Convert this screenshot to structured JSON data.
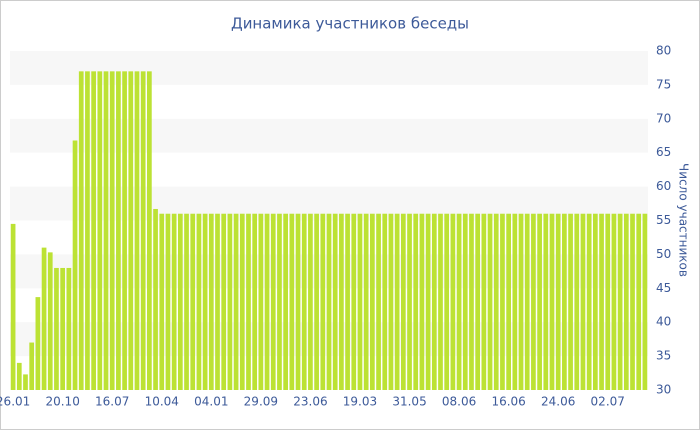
{
  "chart_data": {
    "type": "bar",
    "title": "Динамика участников беседы",
    "y_label": "Число участников",
    "categories": [
      "26.01",
      null,
      null,
      null,
      null,
      null,
      null,
      null,
      "20.10",
      null,
      null,
      null,
      null,
      null,
      null,
      null,
      "16.07",
      null,
      null,
      null,
      null,
      null,
      null,
      null,
      "10.04",
      null,
      null,
      null,
      null,
      null,
      null,
      null,
      "04.01",
      null,
      null,
      null,
      null,
      null,
      null,
      null,
      "29.09",
      null,
      null,
      null,
      null,
      null,
      null,
      null,
      "23.06",
      null,
      null,
      null,
      null,
      null,
      null,
      null,
      "19.03",
      null,
      null,
      null,
      null,
      null,
      null,
      null,
      "31.05",
      null,
      null,
      null,
      null,
      null,
      null,
      null,
      "08.06",
      null,
      null,
      null,
      null,
      null,
      null,
      null,
      "16.06",
      null,
      null,
      null,
      null,
      null,
      null,
      null,
      "24.06",
      null,
      null,
      null,
      null,
      null,
      null,
      null,
      "02.07",
      null,
      null,
      null,
      null,
      null,
      null
    ],
    "values": [
      54.5,
      34,
      32.3,
      37,
      43.7,
      51,
      50.3,
      48,
      48,
      48,
      66.8,
      77,
      77,
      77,
      77,
      77,
      77,
      77,
      77,
      77,
      77,
      77,
      77,
      56.7,
      56,
      56,
      56,
      56,
      56,
      56,
      56,
      56,
      56,
      56,
      56,
      56,
      56,
      56,
      56,
      56,
      56,
      56,
      56,
      56,
      56,
      56,
      56,
      56,
      56,
      56,
      56,
      56,
      56,
      56,
      56,
      56,
      56,
      56,
      56,
      56,
      56,
      56,
      56,
      56,
      56,
      56,
      56,
      56,
      56,
      56,
      56,
      56,
      56,
      56,
      56,
      56,
      56,
      56,
      56,
      56,
      56,
      56,
      56,
      56,
      56,
      56,
      56,
      56,
      56,
      56,
      56,
      56,
      56,
      56,
      56,
      56,
      56,
      56,
      56,
      56,
      56,
      56,
      56
    ],
    "color": "#bce234",
    "ylim": [
      30,
      80
    ],
    "yticks": [
      30,
      35,
      40,
      45,
      50,
      55,
      60,
      65,
      70,
      75,
      80
    ],
    "grid": "bands",
    "band_color": "#f7f7f7",
    "y_axis_side": "right"
  }
}
